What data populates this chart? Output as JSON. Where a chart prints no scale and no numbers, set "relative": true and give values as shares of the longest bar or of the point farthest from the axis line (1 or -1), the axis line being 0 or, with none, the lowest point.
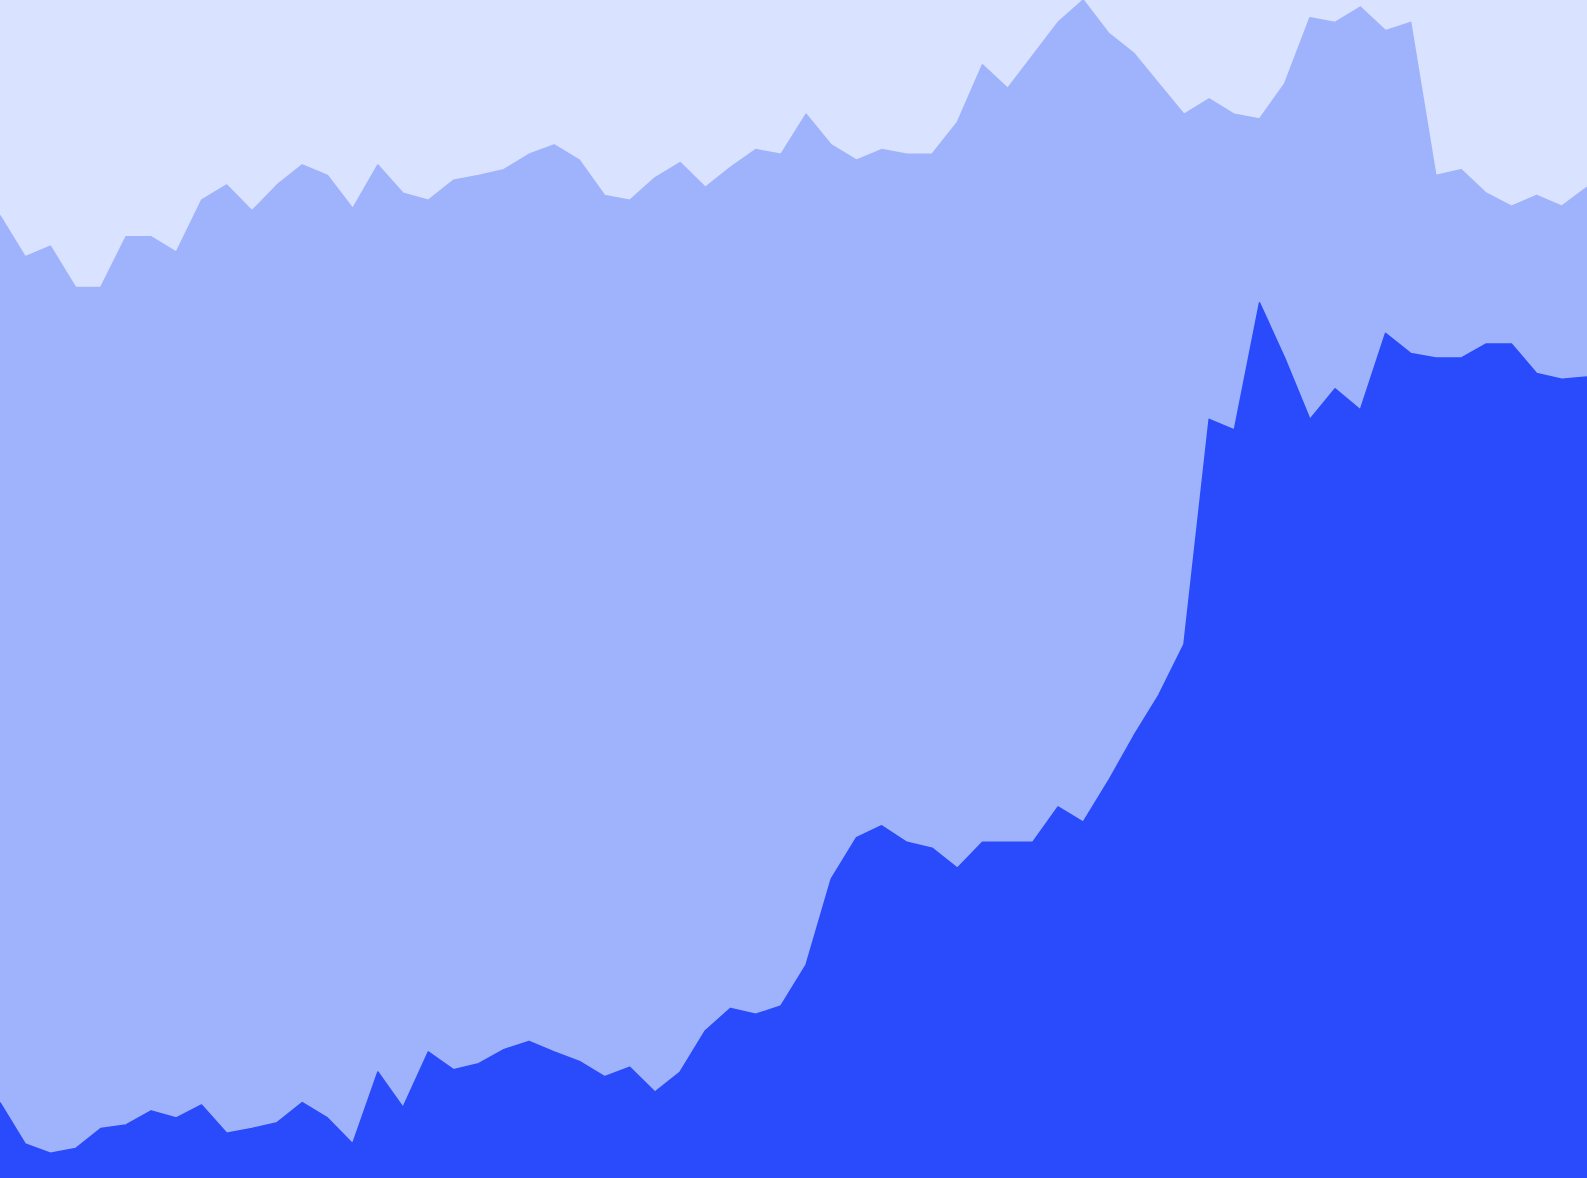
{
  "chart_data": {
    "type": "area",
    "relative": true,
    "stacked": true,
    "categories": [
      null,
      null,
      null,
      null,
      null,
      null,
      null,
      null,
      null,
      null,
      null,
      null,
      null,
      null,
      null,
      null,
      null,
      null,
      null,
      null,
      null,
      null,
      null,
      null,
      null,
      null,
      null,
      null,
      null,
      null,
      null,
      null,
      null,
      null,
      null,
      null,
      null,
      null,
      null,
      null,
      null,
      null,
      null,
      null,
      null,
      null,
      null,
      null,
      null,
      null,
      null,
      null,
      null,
      null,
      null,
      null,
      null,
      null,
      null,
      null,
      null,
      null,
      null,
      null
    ],
    "series": [
      {
        "color": "#2a4bfb",
        "values": [
          0.064,
          0.029,
          0.021,
          0.025,
          0.042,
          0.045,
          0.057,
          0.051,
          0.062,
          0.038,
          0.042,
          0.047,
          0.064,
          0.051,
          0.029,
          0.09,
          0.06,
          0.107,
          0.092,
          0.097,
          0.109,
          0.116,
          0.107,
          0.099,
          0.086,
          0.094,
          0.073,
          0.09,
          0.125,
          0.144,
          0.139,
          0.146,
          0.181,
          0.254,
          0.289,
          0.299,
          0.285,
          0.28,
          0.263,
          0.285,
          0.285,
          0.285,
          0.315,
          0.302,
          0.337,
          0.375,
          0.41,
          0.453,
          0.644,
          0.635,
          0.743,
          0.696,
          0.644,
          0.67,
          0.652,
          0.717,
          0.7,
          0.696,
          0.696,
          0.708,
          0.708,
          0.683,
          0.678,
          0.68
        ]
      },
      {
        "color": "#9fb3fd",
        "values": [
          0.753,
          0.753,
          0.77,
          0.731,
          0.714,
          0.754,
          0.742,
          0.735,
          0.768,
          0.805,
          0.779,
          0.796,
          0.796,
          0.8,
          0.794,
          0.77,
          0.776,
          0.723,
          0.755,
          0.754,
          0.747,
          0.753,
          0.77,
          0.765,
          0.748,
          0.736,
          0.776,
          0.772,
          0.716,
          0.714,
          0.734,
          0.723,
          0.722,
          0.623,
          0.575,
          0.574,
          0.584,
          0.589,
          0.633,
          0.66,
          0.64,
          0.668,
          0.666,
          0.698,
          0.635,
          0.58,
          0.519,
          0.45,
          0.272,
          0.268,
          0.156,
          0.233,
          0.341,
          0.311,
          0.342,
          0.257,
          0.281,
          0.155,
          0.16,
          0.128,
          0.117,
          0.151,
          0.147,
          0.161
        ]
      }
    ]
  }
}
